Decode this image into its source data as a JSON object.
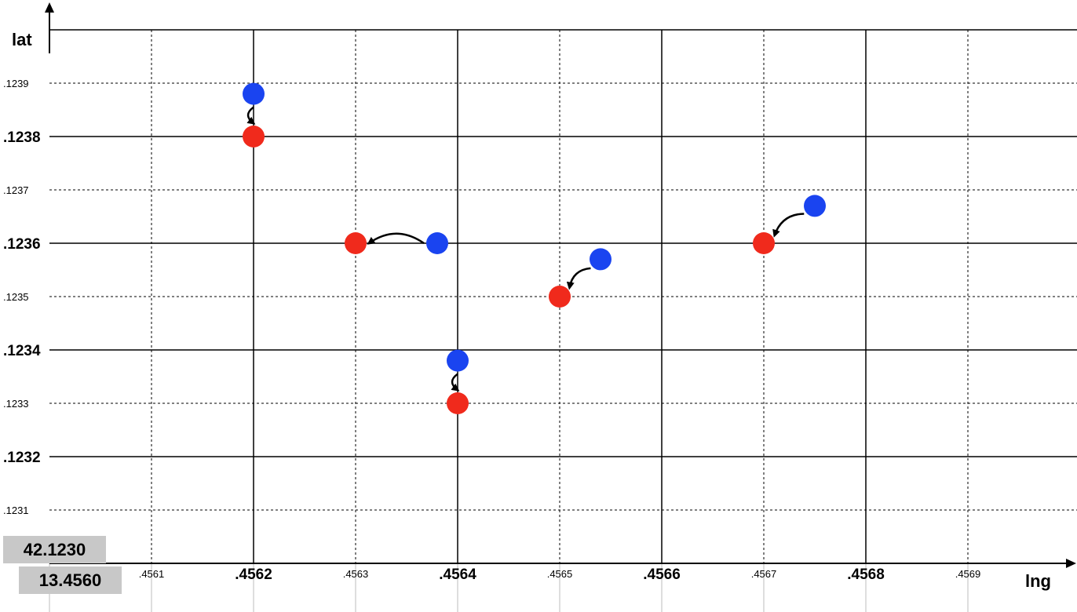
{
  "chart_data": {
    "type": "scatter",
    "xlabel": "lng",
    "ylabel": "lat",
    "x_origin_label": "13.4560",
    "y_origin_label": "42.1230",
    "xlim": [
      13.456,
      13.457
    ],
    "ylim": [
      42.123,
      42.124
    ],
    "grid": true,
    "x_ticks": [
      {
        "value": 13.4561,
        "label": ".4561",
        "major": false
      },
      {
        "value": 13.4562,
        "label": ".4562",
        "major": true
      },
      {
        "value": 13.4563,
        "label": ".4563",
        "major": false
      },
      {
        "value": 13.4564,
        "label": ".4564",
        "major": true
      },
      {
        "value": 13.4565,
        "label": ".4565",
        "major": false
      },
      {
        "value": 13.4566,
        "label": ".4566",
        "major": true
      },
      {
        "value": 13.4567,
        "label": ".4567",
        "major": false
      },
      {
        "value": 13.4568,
        "label": ".4568",
        "major": true
      },
      {
        "value": 13.4569,
        "label": ".4569",
        "major": false
      }
    ],
    "y_ticks": [
      {
        "value": 42.1231,
        "label": ".1231",
        "major": false
      },
      {
        "value": 42.1232,
        "label": ".1232",
        "major": true
      },
      {
        "value": 42.1233,
        "label": ".1233",
        "major": false
      },
      {
        "value": 42.1234,
        "label": ".1234",
        "major": true
      },
      {
        "value": 42.1235,
        "label": ".1235",
        "major": false
      },
      {
        "value": 42.1236,
        "label": ".1236",
        "major": true
      },
      {
        "value": 42.1237,
        "label": ".1237",
        "major": false
      },
      {
        "value": 42.1238,
        "label": ".1238",
        "major": true
      },
      {
        "value": 42.1239,
        "label": ".1239",
        "major": false
      }
    ],
    "series": [
      {
        "color": "#1a44f0",
        "points": [
          {
            "x": 13.4562,
            "y": 42.12388
          },
          {
            "x": 13.45638,
            "y": 42.1236
          },
          {
            "x": 13.4564,
            "y": 42.12338
          },
          {
            "x": 13.45654,
            "y": 42.12357
          },
          {
            "x": 13.45675,
            "y": 42.12367
          }
        ]
      },
      {
        "color": "#f02a1c",
        "points": [
          {
            "x": 13.4562,
            "y": 42.1238
          },
          {
            "x": 13.4563,
            "y": 42.1236
          },
          {
            "x": 13.4564,
            "y": 42.1233
          },
          {
            "x": 13.4565,
            "y": 42.1235
          },
          {
            "x": 13.4567,
            "y": 42.1236
          }
        ]
      }
    ],
    "arrows": [
      {
        "from": 0,
        "to": 0
      },
      {
        "from": 1,
        "to": 1
      },
      {
        "from": 2,
        "to": 2
      },
      {
        "from": 3,
        "to": 3
      },
      {
        "from": 4,
        "to": 4
      }
    ]
  }
}
